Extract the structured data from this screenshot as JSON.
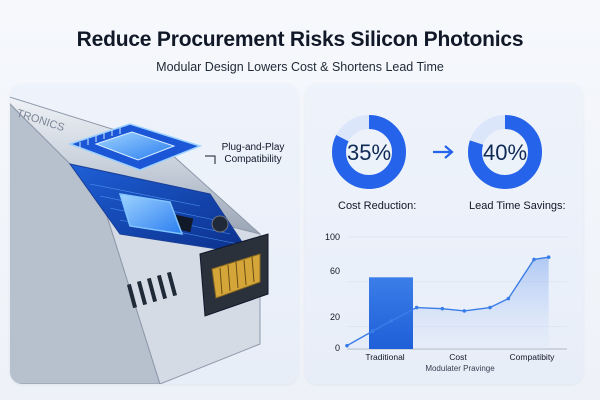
{
  "header": {
    "title": "Reduce Procurement Risks Silicon Photonics",
    "subtitle": "Modular Design Lowers Cost & Shortens Lead Time"
  },
  "illustration": {
    "callout": "Plug-and-Play Compatibility",
    "module_engraving": "TRONICS"
  },
  "metrics": [
    {
      "value_label": "35%",
      "fraction": 0.35,
      "caption": "Cost Reduction:"
    },
    {
      "value_label": "40%",
      "fraction": 0.4,
      "caption": "Lead Time Savings:"
    }
  ],
  "chart_data": {
    "type": "bar",
    "categories": [
      "Traditional",
      "Cost",
      "Compatibity"
    ],
    "y_ticks": [
      "100",
      "60",
      "20",
      "0"
    ],
    "ylim": [
      0,
      100
    ],
    "xlabel": "Modulater Pravinge",
    "bar": {
      "category": "Traditional",
      "value": 64
    },
    "line": {
      "x": [
        0,
        0.35,
        0.6,
        0.95,
        1.3,
        1.6,
        1.95,
        2.2,
        2.55,
        2.75
      ],
      "y": [
        3,
        16,
        25,
        37,
        36,
        34,
        37,
        45,
        80,
        82
      ]
    }
  },
  "colors": {
    "accent": "#2563eb",
    "accent_light": "#dbe6fb",
    "bar": "#2f6fe6",
    "line": "#3b7de8"
  }
}
